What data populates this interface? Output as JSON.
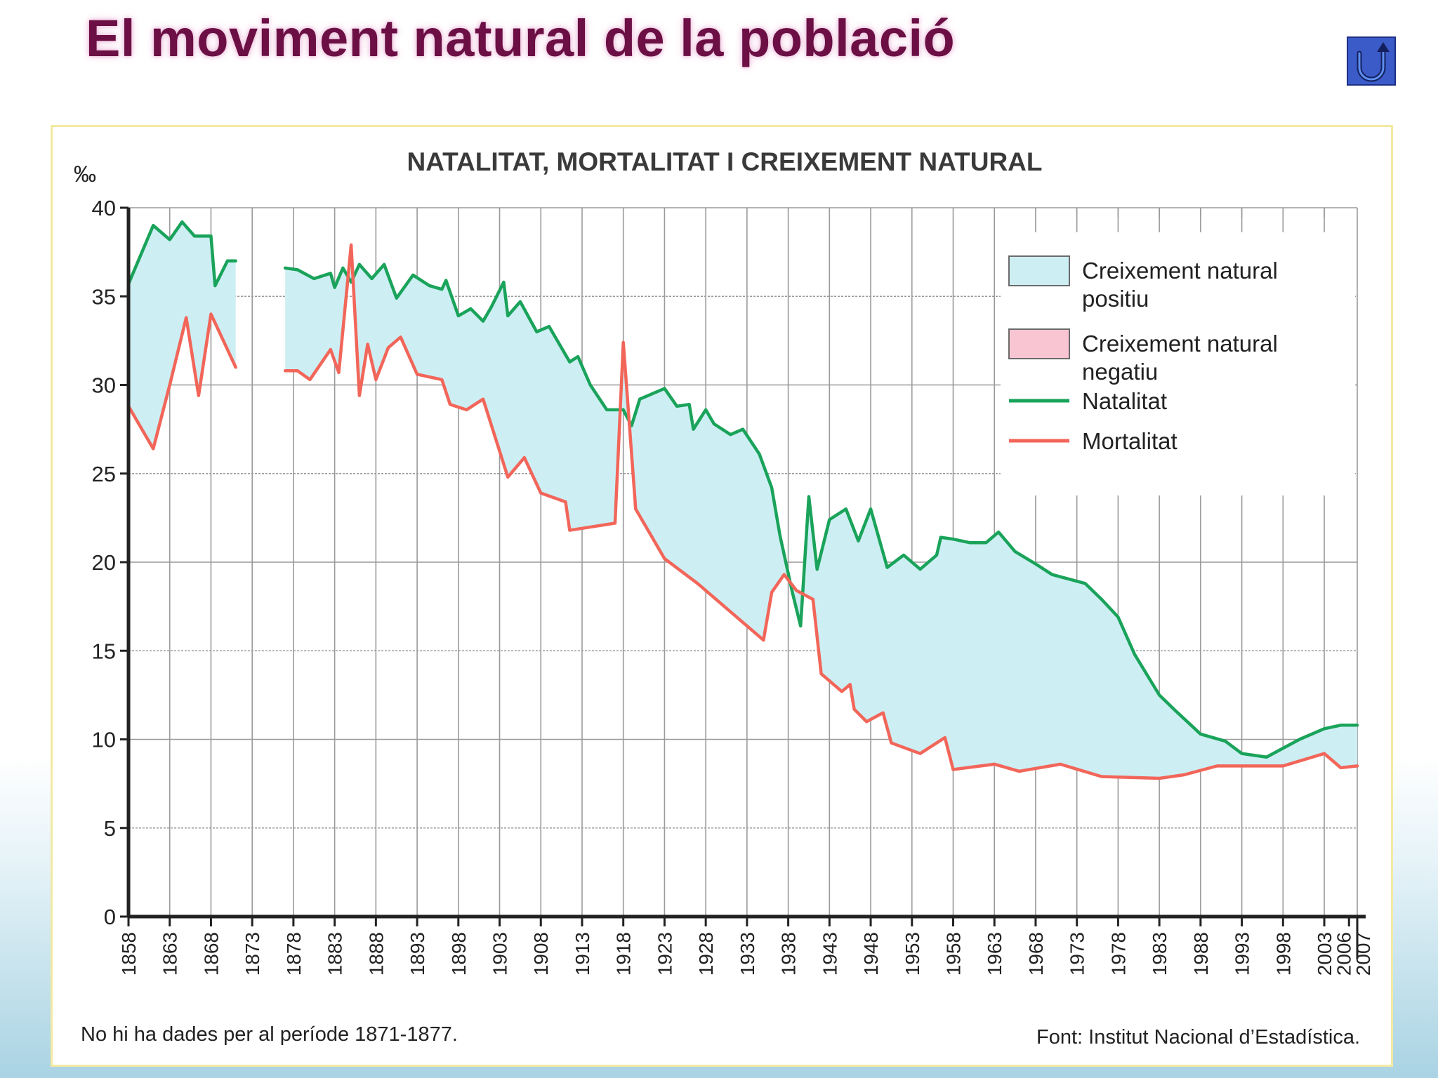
{
  "page": {
    "title": "El moviment natural de la població",
    "back_button_label": "Tornar"
  },
  "colors": {
    "title": "#6b0f45",
    "natalitat": "#1aa35a",
    "mortalitat": "#f2665a",
    "positive_fill": "#cdeff4",
    "negative_fill": "#f9c5d2",
    "grid": "#9a9a9a",
    "axis": "#222222"
  },
  "chart_data": {
    "type": "line",
    "title": "NATALITAT, MORTALITAT I CREIXEMENT NATURAL",
    "ylabel": "‰",
    "xlabel": "",
    "ylim": [
      0,
      40
    ],
    "xlim": [
      1858,
      2007
    ],
    "yticks": [
      0,
      5,
      10,
      15,
      20,
      25,
      30,
      35,
      40
    ],
    "xticks": [
      1858,
      1863,
      1868,
      1873,
      1878,
      1883,
      1888,
      1893,
      1898,
      1903,
      1908,
      1913,
      1918,
      1923,
      1928,
      1933,
      1938,
      1943,
      1948,
      1953,
      1958,
      1963,
      1968,
      1973,
      1978,
      1983,
      1988,
      1993,
      1998,
      2003,
      2006,
      2007
    ],
    "legend": [
      {
        "key": "positive",
        "label": "Creixement natural positiu"
      },
      {
        "key": "negative",
        "label": "Creixement natural negatiu"
      },
      {
        "key": "natalitat",
        "label": "Natalitat"
      },
      {
        "key": "mortalitat",
        "label": "Mortalitat"
      }
    ],
    "legend_position": "top-right",
    "series": [
      {
        "name": "Natalitat",
        "segments": [
          [
            [
              1858,
              35.7
            ],
            [
              1861,
              39.0
            ],
            [
              1863,
              38.2
            ],
            [
              1864.5,
              39.2
            ],
            [
              1866,
              38.4
            ],
            [
              1868,
              38.4
            ],
            [
              1868.5,
              35.6
            ],
            [
              1870,
              37.0
            ],
            [
              1871,
              37.0
            ]
          ],
          [
            [
              1877,
              36.6
            ],
            [
              1878.5,
              36.5
            ],
            [
              1880.5,
              36.0
            ],
            [
              1882.5,
              36.3
            ],
            [
              1883,
              35.5
            ],
            [
              1884,
              36.6
            ],
            [
              1885,
              35.8
            ],
            [
              1886,
              36.8
            ],
            [
              1887.5,
              36.0
            ],
            [
              1889,
              36.8
            ],
            [
              1890.5,
              34.9
            ],
            [
              1892.5,
              36.2
            ],
            [
              1894.5,
              35.6
            ],
            [
              1896,
              35.4
            ],
            [
              1896.5,
              35.9
            ],
            [
              1898,
              33.9
            ],
            [
              1899.5,
              34.3
            ],
            [
              1901,
              33.6
            ],
            [
              1902,
              34.4
            ],
            [
              1903.5,
              35.8
            ],
            [
              1904,
              33.9
            ],
            [
              1905.5,
              34.7
            ],
            [
              1907.5,
              33.0
            ],
            [
              1909,
              33.3
            ],
            [
              1911.5,
              31.3
            ],
            [
              1912.5,
              31.6
            ],
            [
              1914,
              30.0
            ],
            [
              1916,
              28.6
            ],
            [
              1918,
              28.6
            ],
            [
              1919,
              27.7
            ],
            [
              1920,
              29.2
            ],
            [
              1923,
              29.8
            ],
            [
              1924.5,
              28.8
            ],
            [
              1926,
              28.9
            ],
            [
              1926.5,
              27.5
            ],
            [
              1928,
              28.6
            ],
            [
              1929,
              27.8
            ],
            [
              1931,
              27.2
            ],
            [
              1932.5,
              27.5
            ],
            [
              1934.5,
              26.1
            ],
            [
              1936,
              24.2
            ],
            [
              1937,
              21.5
            ],
            [
              1938.5,
              18.3
            ],
            [
              1939.5,
              16.4
            ],
            [
              1940.5,
              23.7
            ],
            [
              1941.5,
              19.6
            ],
            [
              1943,
              22.4
            ],
            [
              1945,
              23.0
            ],
            [
              1946.5,
              21.2
            ],
            [
              1948,
              23.0
            ],
            [
              1950,
              19.7
            ],
            [
              1952,
              20.4
            ],
            [
              1954,
              19.6
            ],
            [
              1956,
              20.4
            ],
            [
              1956.5,
              21.4
            ],
            [
              1958,
              21.3
            ],
            [
              1960,
              21.1
            ],
            [
              1962,
              21.1
            ],
            [
              1963.5,
              21.7
            ],
            [
              1965.5,
              20.6
            ],
            [
              1968,
              19.9
            ],
            [
              1970,
              19.3
            ],
            [
              1974,
              18.8
            ],
            [
              1976,
              17.9
            ],
            [
              1978,
              16.9
            ],
            [
              1980,
              14.8
            ],
            [
              1983,
              12.5
            ],
            [
              1985,
              11.6
            ],
            [
              1988,
              10.3
            ],
            [
              1991,
              9.9
            ],
            [
              1993,
              9.2
            ],
            [
              1996,
              9.0
            ],
            [
              2000,
              10.0
            ],
            [
              2003,
              10.6
            ],
            [
              2005,
              10.8
            ],
            [
              2007,
              10.8
            ]
          ]
        ]
      },
      {
        "name": "Mortalitat",
        "segments": [
          [
            [
              1858,
              28.8
            ],
            [
              1861,
              26.4
            ],
            [
              1863,
              30.0
            ],
            [
              1865,
              33.8
            ],
            [
              1866.5,
              29.4
            ],
            [
              1868,
              34.0
            ],
            [
              1871,
              31.0
            ]
          ],
          [
            [
              1877,
              30.8
            ],
            [
              1878.5,
              30.8
            ],
            [
              1880,
              30.3
            ],
            [
              1882.5,
              32.0
            ],
            [
              1883.5,
              30.7
            ],
            [
              1885,
              37.9
            ],
            [
              1886,
              29.4
            ],
            [
              1887,
              32.3
            ],
            [
              1888,
              30.3
            ],
            [
              1889.5,
              32.1
            ],
            [
              1891,
              32.7
            ],
            [
              1893,
              30.6
            ],
            [
              1896,
              30.3
            ],
            [
              1897,
              28.9
            ],
            [
              1899,
              28.6
            ],
            [
              1901,
              29.2
            ],
            [
              1904,
              24.8
            ],
            [
              1906,
              25.9
            ],
            [
              1908,
              23.9
            ],
            [
              1911,
              23.4
            ],
            [
              1911.5,
              21.8
            ],
            [
              1917,
              22.2
            ],
            [
              1918,
              32.4
            ],
            [
              1919.5,
              23.0
            ],
            [
              1923,
              20.2
            ],
            [
              1927,
              18.8
            ],
            [
              1931,
              17.2
            ],
            [
              1935,
              15.6
            ],
            [
              1936,
              18.3
            ],
            [
              1937.5,
              19.3
            ],
            [
              1939,
              18.4
            ],
            [
              1941,
              17.9
            ],
            [
              1942,
              13.7
            ],
            [
              1944.5,
              12.7
            ],
            [
              1945.5,
              13.1
            ],
            [
              1946,
              11.7
            ],
            [
              1947.5,
              11.0
            ],
            [
              1949.5,
              11.5
            ],
            [
              1950.5,
              9.8
            ],
            [
              1954,
              9.2
            ],
            [
              1957,
              10.1
            ],
            [
              1958,
              8.3
            ],
            [
              1963,
              8.6
            ],
            [
              1966,
              8.2
            ],
            [
              1971,
              8.6
            ],
            [
              1976,
              7.9
            ],
            [
              1983,
              7.8
            ],
            [
              1986,
              8.0
            ],
            [
              1990,
              8.5
            ],
            [
              1998,
              8.5
            ],
            [
              2003,
              9.2
            ],
            [
              2005,
              8.4
            ],
            [
              2007,
              8.5
            ]
          ]
        ]
      }
    ],
    "notes": {
      "left": "No hi ha dades per al període 1871-1877.",
      "right": "Font: Institut Nacional d’Estadística."
    }
  }
}
